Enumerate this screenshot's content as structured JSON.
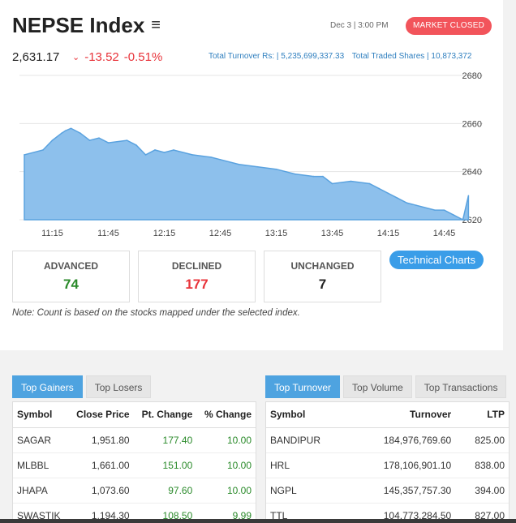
{
  "header": {
    "title": "NEPSE Index",
    "datetime": "Dec 3 | 3:00 PM",
    "status": "MARKET CLOSED",
    "index_value": "2,631.17",
    "change_pts": "-13.52",
    "change_pct": "-0.51%",
    "turnover": "Total Turnover Rs: | 5,235,699,337.33",
    "traded_shares": "Total Traded Shares | 10,873,372"
  },
  "colors": {
    "accent": "#4ea3e0",
    "negative": "#e8333a",
    "positive": "#2a8a2a",
    "area_fill": "#8dc0ec",
    "status": "#f2545b"
  },
  "chart_data": {
    "type": "area",
    "x_ticks": [
      "11:15",
      "11:45",
      "12:15",
      "12:45",
      "13:15",
      "13:45",
      "14:15",
      "14:45"
    ],
    "y_ticks": [
      2680,
      2660,
      2640,
      2620
    ],
    "ylim": [
      2620,
      2680
    ],
    "x": [
      "11:00",
      "11:10",
      "11:15",
      "11:20",
      "11:22",
      "11:25",
      "11:30",
      "11:35",
      "11:40",
      "11:45",
      "11:55",
      "12:00",
      "12:05",
      "12:10",
      "12:15",
      "12:20",
      "12:30",
      "12:40",
      "12:45",
      "12:55",
      "13:05",
      "13:15",
      "13:25",
      "13:35",
      "13:40",
      "13:45",
      "13:55",
      "14:05",
      "14:10",
      "14:15",
      "14:20",
      "14:25",
      "14:30",
      "14:40",
      "14:45",
      "14:50",
      "14:55",
      "14:58"
    ],
    "y": [
      2647,
      2649,
      2653,
      2656,
      2657,
      2658,
      2656,
      2653,
      2654,
      2652,
      2653,
      2651,
      2647,
      2649,
      2648,
      2649,
      2647,
      2646,
      2645,
      2643,
      2642,
      2641,
      2639,
      2638,
      2638,
      2635,
      2636,
      2635,
      2633,
      2631,
      2629,
      2627,
      2626,
      2624,
      2624,
      2622,
      2620,
      2630
    ]
  },
  "stats": [
    {
      "label": "ADVANCED",
      "value": "74",
      "color": "#2a8a2a"
    },
    {
      "label": "DECLINED",
      "value": "177",
      "color": "#e8333a"
    },
    {
      "label": "UNCHANGED",
      "value": "7",
      "color": "#222222"
    }
  ],
  "tech_button": "Technical Charts",
  "note": "Note: Count is based on the stocks mapped under the selected index.",
  "left_tabs": [
    "Top Gainers",
    "Top Losers"
  ],
  "right_tabs": [
    "Top Turnover",
    "Top Volume",
    "Top Transactions"
  ],
  "gainers": {
    "headers": [
      "Symbol",
      "Close Price",
      "Pt. Change",
      "% Change"
    ],
    "rows": [
      [
        "SAGAR",
        "1,951.80",
        "177.40",
        "10.00"
      ],
      [
        "MLBBL",
        "1,661.00",
        "151.00",
        "10.00"
      ],
      [
        "JHAPA",
        "1,073.60",
        "97.60",
        "10.00"
      ],
      [
        "SWASTIK",
        "1,194.30",
        "108.50",
        "9.99"
      ]
    ]
  },
  "turnover_table": {
    "headers": [
      "Symbol",
      "Turnover",
      "LTP"
    ],
    "rows": [
      [
        "BANDIPUR",
        "184,976,769.60",
        "825.00"
      ],
      [
        "HRL",
        "178,106,901.10",
        "838.00"
      ],
      [
        "NGPL",
        "145,357,757.30",
        "394.00"
      ],
      [
        "TTL",
        "104,773,284.50",
        "827.00"
      ]
    ]
  }
}
